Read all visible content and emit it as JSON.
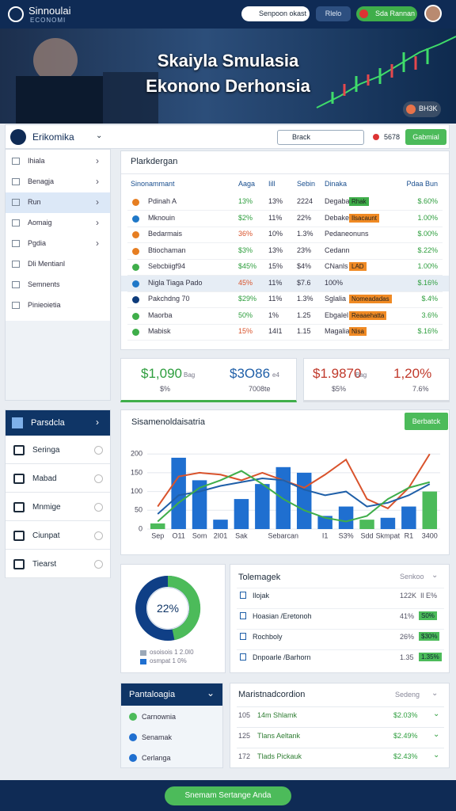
{
  "header": {
    "logo_title": "Sinnoulai",
    "logo_subtitle": "ECONOMI",
    "search": "Senpoon okast",
    "button": "Rlelo",
    "account": "Sda Rannan"
  },
  "hero": {
    "title_line1": "Skaiyla Smulasia",
    "title_line2": "Ekonono Derhonsia",
    "badge": "BH3K"
  },
  "toolbar": {
    "title": "Erikomika",
    "search": "Brack",
    "count": "5678",
    "button": "Gabmial"
  },
  "sidebar": {
    "active": 2,
    "items": [
      "Ihiala",
      "Benagja",
      "Run",
      "Aomaig",
      "Pgdia",
      "Dli Mentianl",
      "Semnents",
      "Pinieoietia"
    ]
  },
  "table": {
    "title": "Plarkdergan",
    "columns": [
      "Sinonammant",
      "Aaga",
      "Iill",
      "Sebin",
      "Dinaka",
      "Pdaa Bun"
    ],
    "rows": [
      {
        "dot": "#e67e22",
        "cells": [
          "Pdinah A",
          "13%",
          "13%",
          "2224",
          "Degaba",
          "$.60%"
        ],
        "badge": "Rhak",
        "badge_color": "#3fae4a"
      },
      {
        "dot": "#1f78c8",
        "cells": [
          "Mknouin",
          "$2%",
          "11%",
          "22%",
          "Debake",
          "1.00%"
        ],
        "badge": "Ilsacaunt",
        "badge_color": "#f08a24"
      },
      {
        "dot": "#e67e22",
        "cells": [
          "Bedarmais",
          "36%",
          "10%",
          "1.3%",
          "Pedaneonuns",
          "$.00%"
        ]
      },
      {
        "dot": "#e67e22",
        "cells": [
          "Btiochaman",
          "$3%",
          "13%",
          "23%",
          "Cedann",
          "$.22%"
        ]
      },
      {
        "dot": "#3fae4a",
        "cells": [
          "Sebcbiigf94",
          "$45%",
          "15%",
          "$4%",
          "CNanls",
          "1.00%"
        ],
        "badge": "LAD",
        "badge_color": "#f08a24"
      },
      {
        "dot": "#1f78c8",
        "cells": [
          "Nigla Tiaga Pado",
          "45%",
          "11%",
          "$7.6",
          "100%",
          "$.16%"
        ],
        "highlight": true
      },
      {
        "dot": "#0d3b7a",
        "cells": [
          "Pakchdng 70",
          "$29%",
          "11%",
          "1.3%",
          "Sglalia",
          "$.4%"
        ],
        "badge": "Nomeadadas",
        "badge_color": "#f08a24"
      },
      {
        "dot": "#3fae4a",
        "cells": [
          "Maorba",
          "50%",
          "1%",
          "1.25",
          "Ebgalel",
          "3.6%"
        ],
        "badge": "Reaaehatta",
        "badge_color": "#f08a24"
      },
      {
        "dot": "#3fae4a",
        "cells": [
          "Mabisk",
          "15%",
          "14I1",
          "1.15",
          "Magalia",
          "$.16%"
        ],
        "badge": "Nisa",
        "badge_color": "#f08a24"
      }
    ]
  },
  "kpis": [
    {
      "value": "$1,090",
      "unit": "Bag",
      "sub": "$%",
      "color": "#2e9e3e"
    },
    {
      "value": "$3O86",
      "unit": "e4",
      "sub": "7008te",
      "color": "#1f5fa8"
    },
    {
      "value": "$1.9870",
      "unit": "Bag",
      "sub": "$5%",
      "color": "#c0392b"
    },
    {
      "value": "1,20%",
      "sub": "7.6%",
      "color": "#c0392b"
    }
  ],
  "nav": {
    "title": "Parsdcla",
    "items": [
      "Seringa",
      "Mabad",
      "Mnmige",
      "Ciunpat",
      "Tiearst"
    ]
  },
  "chart_panel": {
    "button": "Berbatck"
  },
  "chart_data": {
    "type": "bar",
    "title": "Sisamenoldaisatria",
    "categories": [
      "Sep",
      "O11",
      "Som",
      "2I01",
      "Sak",
      null,
      "Sebarcan",
      null,
      "I1",
      "S3%",
      "Sdd",
      "Skmpat",
      "R1",
      "3400"
    ],
    "ylim": [
      0,
      230
    ],
    "yticks": [
      0,
      50,
      100,
      150,
      200
    ],
    "grid": true,
    "series": [
      {
        "type": "bar",
        "values": [
          15,
          190,
          130,
          25,
          80,
          120,
          165,
          150,
          35,
          60,
          25,
          30,
          60,
          100
        ],
        "colors": [
          "#4cbb5a",
          "#1f6fd0",
          "#1f6fd0",
          "#1f6fd0",
          "#1f6fd0",
          "#1f6fd0",
          "#1f6fd0",
          "#1f6fd0",
          "#1f6fd0",
          "#1f6fd0",
          "#4cbb5a",
          "#1f6fd0",
          "#1f6fd0",
          "#4cbb5a"
        ]
      },
      {
        "type": "line",
        "color": "#d9532c",
        "values": [
          60,
          140,
          150,
          145,
          130,
          150,
          130,
          110,
          145,
          185,
          80,
          55,
          110,
          200
        ]
      },
      {
        "type": "line",
        "color": "#1f5fa8",
        "values": [
          40,
          90,
          100,
          115,
          125,
          135,
          130,
          105,
          90,
          100,
          60,
          70,
          90,
          120
        ]
      },
      {
        "type": "line",
        "color": "#3fae4a",
        "values": [
          20,
          70,
          110,
          130,
          155,
          120,
          80,
          50,
          30,
          20,
          35,
          80,
          110,
          125
        ]
      }
    ]
  },
  "donut": {
    "value": "22%",
    "legend": [
      "osoisois 1 2.0I0",
      "osmpat 1 0%"
    ]
  },
  "summary": {
    "title": "Tolemagek",
    "filter": "Senkoo",
    "rows": [
      {
        "label": "Ilojak",
        "value": "122K",
        "extra": "Il E%"
      },
      {
        "label": "Hoasian /Eretonoh",
        "value": "41%",
        "badge": "S0%"
      },
      {
        "label": "Rochboly",
        "value": "26%",
        "badge": "$30%"
      },
      {
        "label": "Dnpoarle /Barhorn",
        "value": "1.35",
        "badge": "1.35%"
      }
    ]
  },
  "portfolio": {
    "title": "Pantaloagia",
    "items": [
      "Carnownia",
      "Senamak",
      "Cerlanga"
    ]
  },
  "markets": {
    "title": "Maristnadcordion",
    "filter": "Sedeng",
    "rows": [
      {
        "id": "105",
        "name": "14m Shlamk",
        "value": "$2.03%"
      },
      {
        "id": "125",
        "name": "Tlans Aeltank",
        "value": "$2.49%"
      },
      {
        "id": "172",
        "name": "Tlads Pickauk",
        "value": "$2.43%"
      }
    ]
  },
  "footer": {
    "button": "Snemam Sertange Anda"
  }
}
